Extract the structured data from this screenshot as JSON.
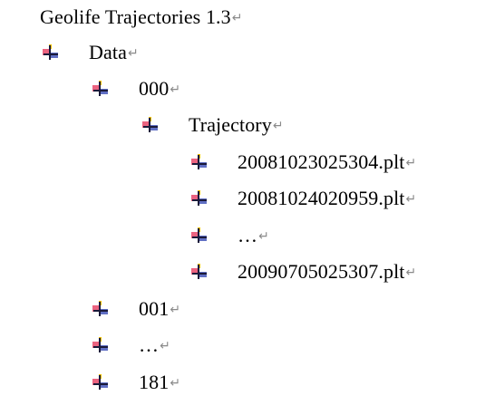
{
  "title": "Geolife Trajectories 1.3",
  "paragraph_mark": "↵",
  "tree": {
    "data": "Data",
    "folder_000": "000",
    "trajectory": "Trajectory",
    "files": [
      "20081023025304.plt",
      "20081024020959.plt",
      "…",
      "20090705025307.plt"
    ],
    "folder_001": "001",
    "folder_ellipsis": "…",
    "folder_181": "181"
  },
  "icon": "bullet-cross-icon",
  "colors": {
    "text": "#000000",
    "paragraph_mark": "#8a8a8a",
    "bullet_red": "#e8486a",
    "bullet_blue": "#2b3fb0",
    "bullet_yellow": "#f2c200"
  }
}
